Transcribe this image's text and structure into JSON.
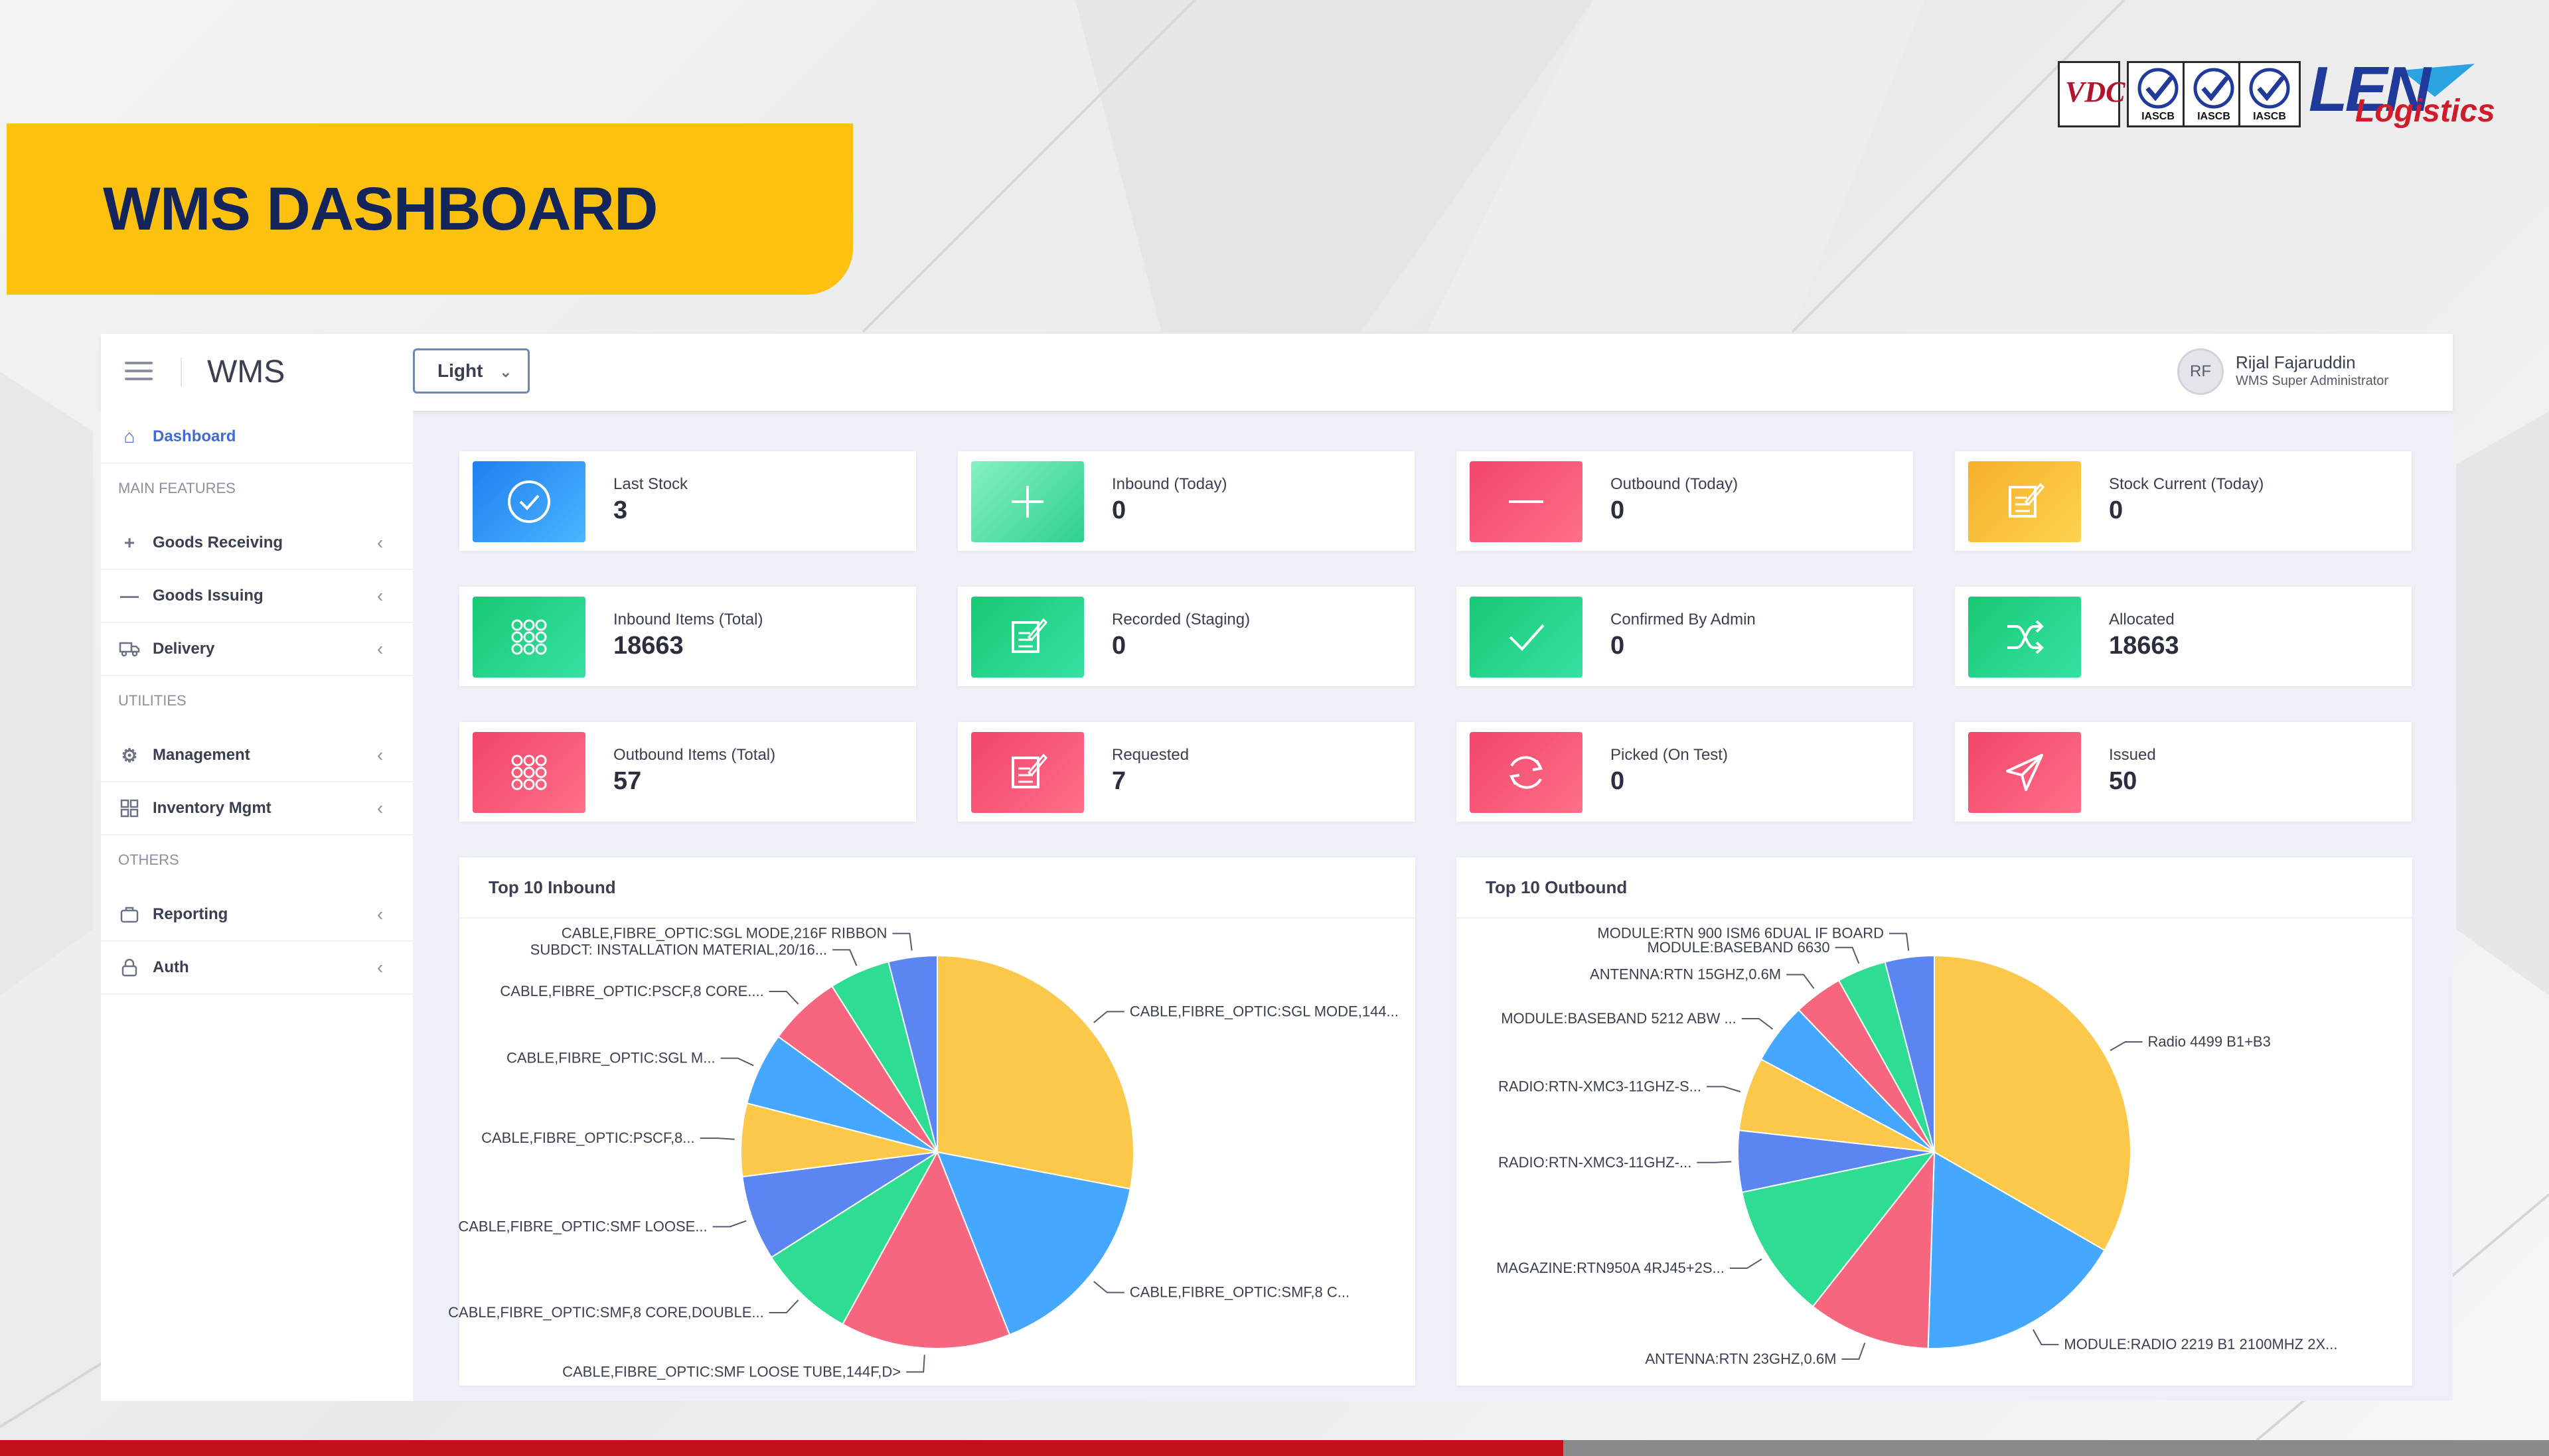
{
  "slide": {
    "title": "WMS DASHBOARD",
    "logos": {
      "cert_left": "VDC",
      "cert_labels": [
        "IASCB",
        "IASCB",
        "IASCB"
      ],
      "brand_main": "LEN",
      "brand_sub": "Logistics"
    }
  },
  "topbar": {
    "app_name": "WMS",
    "theme_value": "Light",
    "user_initials": "RF",
    "user_name": "Rijal Fajaruddin",
    "user_role": "WMS Super Administrator"
  },
  "sidebar": {
    "dashboard": "Dashboard",
    "main_features": "MAIN FEATURES",
    "goods_receiving": "Goods Receiving",
    "goods_issuing": "Goods Issuing",
    "delivery": "Delivery",
    "utilities": "UTILITIES",
    "management": "Management",
    "inventory_mgmt": "Inventory Mgmt",
    "others": "OTHERS",
    "reporting": "Reporting",
    "auth": "Auth"
  },
  "cards": [
    {
      "label": "Last Stock",
      "value": "3"
    },
    {
      "label": "Inbound (Today)",
      "value": "0"
    },
    {
      "label": "Outbound (Today)",
      "value": "0"
    },
    {
      "label": "Stock Current (Today)",
      "value": "0"
    },
    {
      "label": "Inbound Items (Total)",
      "value": "18663"
    },
    {
      "label": "Recorded (Staging)",
      "value": "0"
    },
    {
      "label": "Confirmed By Admin",
      "value": "0"
    },
    {
      "label": "Allocated",
      "value": "18663"
    },
    {
      "label": "Outbound Items (Total)",
      "value": "57"
    },
    {
      "label": "Requested",
      "value": "7"
    },
    {
      "label": "Picked (On Test)",
      "value": "0"
    },
    {
      "label": "Issued",
      "value": "50"
    }
  ],
  "colors": {
    "yellow": "#fcc84a",
    "blue": "#45a7ff",
    "pink": "#f6677f",
    "green": "#2fdc93",
    "royal": "#5b86f2",
    "brand": "#fec10f"
  },
  "chart_data": [
    {
      "type": "pie",
      "title": "Top 10 Inbound",
      "slices": [
        {
          "name": "CABLE,FIBRE_OPTIC:SGL MODE,144...",
          "value": 28,
          "color": "#fcc84a"
        },
        {
          "name": "CABLE,FIBRE_OPTIC:SMF,8 C...",
          "value": 16,
          "color": "#45a7ff"
        },
        {
          "name": "CABLE,FIBRE_OPTIC:SMF LOOSE TUBE,144F,D>",
          "value": 14,
          "color": "#f6677f"
        },
        {
          "name": "CABLE,FIBRE_OPTIC:SMF,8 CORE,DOUBLE...",
          "value": 8,
          "color": "#2fdc93"
        },
        {
          "name": "CABLE,FIBRE_OPTIC:SMF LOOSE...",
          "value": 7,
          "color": "#5b86f2"
        },
        {
          "name": "CABLE,FIBRE_OPTIC:PSCF,8...",
          "value": 6,
          "color": "#fcc84a"
        },
        {
          "name": "CABLE,FIBRE_OPTIC:SGL M...",
          "value": 6,
          "color": "#45a7ff"
        },
        {
          "name": "CABLE,FIBRE_OPTIC:PSCF,8 CORE....",
          "value": 6,
          "color": "#f6677f"
        },
        {
          "name": "SUBDCT: INSTALLATION MATERIAL,20/16...",
          "value": 5,
          "color": "#2fdc93"
        },
        {
          "name": "CABLE,FIBRE_OPTIC:SGL MODE,216F RIBBON",
          "value": 4,
          "color": "#5b86f2"
        }
      ]
    },
    {
      "type": "pie",
      "title": "Top 10 Outbound",
      "slices": [
        {
          "name": "Radio 4499 B1+B3",
          "value": 33,
          "color": "#fcc84a"
        },
        {
          "name": "MODULE:RADIO 2219 B1 2100MHZ 2X...",
          "value": 17,
          "color": "#45a7ff"
        },
        {
          "name": "ANTENNA:RTN 23GHZ,0.6M",
          "value": 10,
          "color": "#f6677f"
        },
        {
          "name": "MAGAZINE:RTN950A 4RJ45+2S...",
          "value": 11,
          "color": "#2fdc93"
        },
        {
          "name": "RADIO:RTN-XMC3-11GHZ-...",
          "value": 5,
          "color": "#5b86f2"
        },
        {
          "name": "RADIO:RTN-XMC3-11GHZ-S...",
          "value": 6,
          "color": "#fcc84a"
        },
        {
          "name": "MODULE:BASEBAND 5212 ABW ...",
          "value": 5,
          "color": "#45a7ff"
        },
        {
          "name": "ANTENNA:RTN 15GHZ,0.6M",
          "value": 4,
          "color": "#f6677f"
        },
        {
          "name": "MODULE:BASEBAND 6630",
          "value": 4,
          "color": "#2fdc93"
        },
        {
          "name": "MODULE:RTN 900 ISM6 6DUAL IF BOARD",
          "value": 4,
          "color": "#5b86f2"
        }
      ]
    }
  ]
}
